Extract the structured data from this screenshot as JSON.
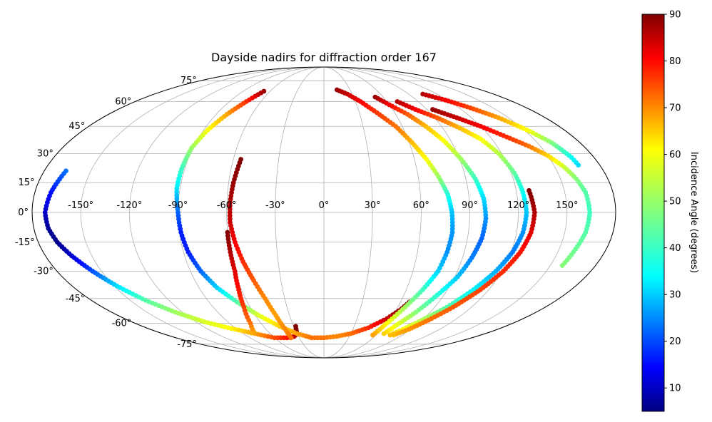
{
  "chart_data": {
    "type": "scatter",
    "projection": "mollweide",
    "title": "Dayside nadirs for diffraction order 167",
    "xlabel": "",
    "ylabel": "",
    "grid": true,
    "lon_ticks": [
      -150,
      -120,
      -90,
      -60,
      -30,
      0,
      30,
      60,
      90,
      120,
      150
    ],
    "lon_tick_labels": [
      "-150°",
      "-120°",
      "-90°",
      "-60°",
      "-30°",
      "0°",
      "30°",
      "60°",
      "90°",
      "120°",
      "150°"
    ],
    "lat_ticks": [
      75,
      60,
      45,
      30,
      15,
      0,
      -15,
      -30,
      -45,
      -60,
      -75
    ],
    "lat_tick_labels": [
      "75°",
      "60°",
      "45°",
      "30°",
      "15°",
      "0°",
      "-15°",
      "-30°",
      "-45°",
      "-60°",
      "-75°"
    ],
    "colorbar": {
      "label": "Incidence Angle (degrees)",
      "colormap": "jet",
      "range": [
        5,
        90
      ],
      "ticks": [
        10,
        20,
        30,
        40,
        50,
        60,
        70,
        80,
        90
      ],
      "tick_labels": [
        "10",
        "20",
        "30",
        "40",
        "50",
        "60",
        "70",
        "80",
        "90"
      ]
    },
    "series": [
      {
        "points": [
          [
            -166,
            21,
            25
          ],
          [
            -170,
            10,
            17
          ],
          [
            -172,
            0,
            11
          ],
          [
            -171,
            -8,
            7
          ],
          [
            -168,
            -15,
            6
          ],
          [
            -163,
            -22,
            11
          ],
          [
            -156,
            -30,
            22
          ],
          [
            -148,
            -38,
            34
          ],
          [
            -138,
            -46,
            44
          ],
          [
            -126,
            -53,
            50
          ],
          [
            -112,
            -59,
            55
          ],
          [
            -97,
            -63,
            58
          ],
          [
            -82,
            -66,
            64
          ],
          [
            -72,
            -68,
            68
          ],
          [
            -60,
            -70,
            73
          ],
          [
            -45,
            -70,
            78
          ],
          [
            -35,
            -69,
            84
          ],
          [
            -30,
            -67,
            88
          ],
          [
            -28,
            -62,
            90
          ]
        ]
      },
      {
        "points": [
          [
            -67,
            67,
            88
          ],
          [
            -74,
            60,
            76
          ],
          [
            -81,
            52,
            66
          ],
          [
            -87,
            43,
            58
          ],
          [
            -91,
            33,
            50
          ],
          [
            -92,
            22,
            42
          ],
          [
            -92,
            12,
            35
          ],
          [
            -90,
            0,
            24
          ],
          [
            -89,
            -10,
            18
          ],
          [
            -87,
            -20,
            18
          ],
          [
            -83,
            -30,
            24
          ],
          [
            -77,
            -39,
            33
          ],
          [
            -68,
            -47,
            44
          ],
          [
            -57,
            -55,
            55
          ],
          [
            -44,
            -62,
            62
          ],
          [
            -30,
            -67,
            66
          ],
          [
            -15,
            -70,
            70
          ],
          [
            0,
            -70,
            70
          ],
          [
            15,
            -69,
            68
          ],
          [
            30,
            -67,
            70
          ],
          [
            45,
            -63,
            76
          ],
          [
            57,
            -57,
            84
          ],
          [
            64,
            -51,
            89
          ],
          [
            67,
            -47,
            90
          ]
        ]
      },
      {
        "points": [
          [
            -55,
            27,
            90
          ],
          [
            -57,
            15,
            88
          ],
          [
            -58,
            5,
            86
          ],
          [
            -58,
            -5,
            84
          ],
          [
            -56,
            -15,
            80
          ],
          [
            -53,
            -25,
            76
          ],
          [
            -49,
            -35,
            72
          ],
          [
            -45,
            -45,
            68
          ],
          [
            -42,
            -55,
            66
          ],
          [
            -40,
            -65,
            68
          ],
          [
            -40,
            -70,
            70
          ]
        ]
      },
      {
        "points": [
          [
            -60,
            -10,
            90
          ],
          [
            -60,
            -20,
            86
          ],
          [
            -60,
            -30,
            82
          ],
          [
            -62,
            -40,
            78
          ],
          [
            -65,
            -50,
            74
          ],
          [
            -70,
            -60,
            70
          ],
          [
            -76,
            -66,
            66
          ]
        ]
      },
      {
        "points": [
          [
            15,
            68,
            88
          ],
          [
            25,
            65,
            84
          ],
          [
            35,
            60,
            80
          ],
          [
            45,
            53,
            75
          ],
          [
            55,
            45,
            70
          ],
          [
            62,
            36,
            64
          ],
          [
            68,
            27,
            58
          ],
          [
            73,
            18,
            50
          ],
          [
            77,
            9,
            40
          ],
          [
            79,
            0,
            32
          ],
          [
            80,
            -10,
            28
          ],
          [
            79,
            -20,
            28
          ],
          [
            77,
            -30,
            33
          ],
          [
            72,
            -40,
            42
          ],
          [
            66,
            -50,
            50
          ],
          [
            60,
            -60,
            58
          ],
          [
            56,
            -68,
            66
          ]
        ]
      },
      {
        "points": [
          [
            52,
            63,
            88
          ],
          [
            60,
            58,
            80
          ],
          [
            70,
            52,
            72
          ],
          [
            78,
            45,
            64
          ],
          [
            85,
            37,
            58
          ],
          [
            91,
            27,
            50
          ],
          [
            96,
            17,
            42
          ],
          [
            99,
            7,
            34
          ],
          [
            100,
            -3,
            28
          ],
          [
            99,
            -13,
            24
          ],
          [
            96,
            -23,
            26
          ],
          [
            92,
            -33,
            32
          ],
          [
            85,
            -43,
            40
          ],
          [
            78,
            -53,
            48
          ],
          [
            71,
            -61,
            56
          ],
          [
            67,
            -67,
            62
          ]
        ]
      },
      {
        "points": [
          [
            70,
            60,
            86
          ],
          [
            80,
            55,
            80
          ],
          [
            92,
            50,
            72
          ],
          [
            103,
            44,
            64
          ],
          [
            112,
            38,
            58
          ],
          [
            118,
            30,
            52
          ],
          [
            122,
            20,
            45
          ],
          [
            124,
            10,
            38
          ],
          [
            125,
            0,
            32
          ],
          [
            124,
            -10,
            28
          ],
          [
            121,
            -20,
            26
          ],
          [
            116,
            -30,
            30
          ],
          [
            109,
            -40,
            36
          ],
          [
            100,
            -50,
            44
          ],
          [
            90,
            -58,
            52
          ],
          [
            82,
            -64,
            58
          ],
          [
            76,
            -68,
            64
          ]
        ]
      },
      {
        "points": [
          [
            128,
            11,
            90
          ],
          [
            130,
            0,
            86
          ],
          [
            129,
            -10,
            82
          ],
          [
            126,
            -20,
            78
          ],
          [
            121,
            -30,
            76
          ],
          [
            114,
            -40,
            74
          ],
          [
            105,
            -50,
            72
          ],
          [
            96,
            -58,
            70
          ],
          [
            88,
            -64,
            67
          ],
          [
            80,
            -68,
            64
          ]
        ]
      },
      {
        "points": [
          [
            95,
            55,
            88
          ],
          [
            108,
            50,
            84
          ],
          [
            120,
            45,
            80
          ],
          [
            132,
            39,
            76
          ],
          [
            142,
            34,
            70
          ],
          [
            150,
            29,
            62
          ],
          [
            156,
            23,
            54
          ],
          [
            160,
            17,
            48
          ],
          [
            163,
            10,
            44
          ],
          [
            164,
            0,
            42
          ],
          [
            163,
            -10,
            44
          ],
          [
            160,
            -20,
            46
          ],
          [
            158,
            -27,
            48
          ]
        ]
      },
      {
        "points": [
          [
            105,
            65,
            86
          ],
          [
            118,
            61,
            80
          ],
          [
            130,
            56,
            74
          ],
          [
            142,
            50,
            66
          ],
          [
            152,
            43,
            58
          ],
          [
            160,
            36,
            48
          ],
          [
            165,
            28,
            38
          ],
          [
            166,
            24,
            34
          ]
        ]
      }
    ]
  }
}
